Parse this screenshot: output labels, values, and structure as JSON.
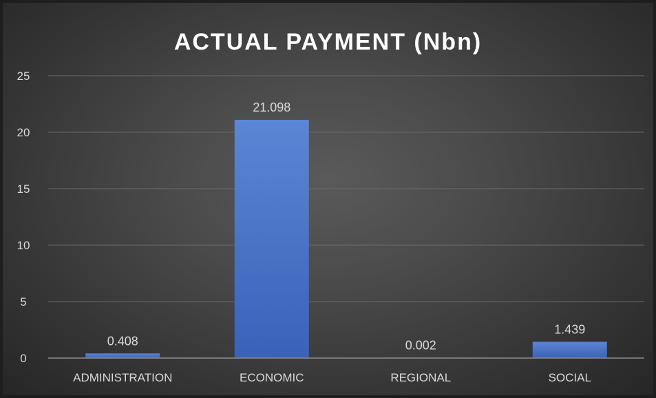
{
  "chart_data": {
    "type": "bar",
    "title": "ACTUAL PAYMENT (Nbn)",
    "categories": [
      "ADMINISTRATION",
      "ECONOMIC",
      "REGIONAL",
      "SOCIAL"
    ],
    "values": [
      0.408,
      21.098,
      0.002,
      1.439
    ],
    "data_labels": [
      "0.408",
      "21.098",
      "0.002",
      "1.439"
    ],
    "y_ticks": [
      0,
      5,
      10,
      15,
      20,
      25
    ],
    "ylim": [
      0,
      25
    ],
    "xlabel": "",
    "ylabel": "",
    "grid": true,
    "legend": "none",
    "colors": {
      "bar_top": "#5b86d6",
      "bar_bottom": "#3a62b8",
      "gridline": "#6a6a6a",
      "axis_line": "#8c8c8c",
      "text": "#d9d9d9",
      "title": "#ffffff"
    }
  }
}
